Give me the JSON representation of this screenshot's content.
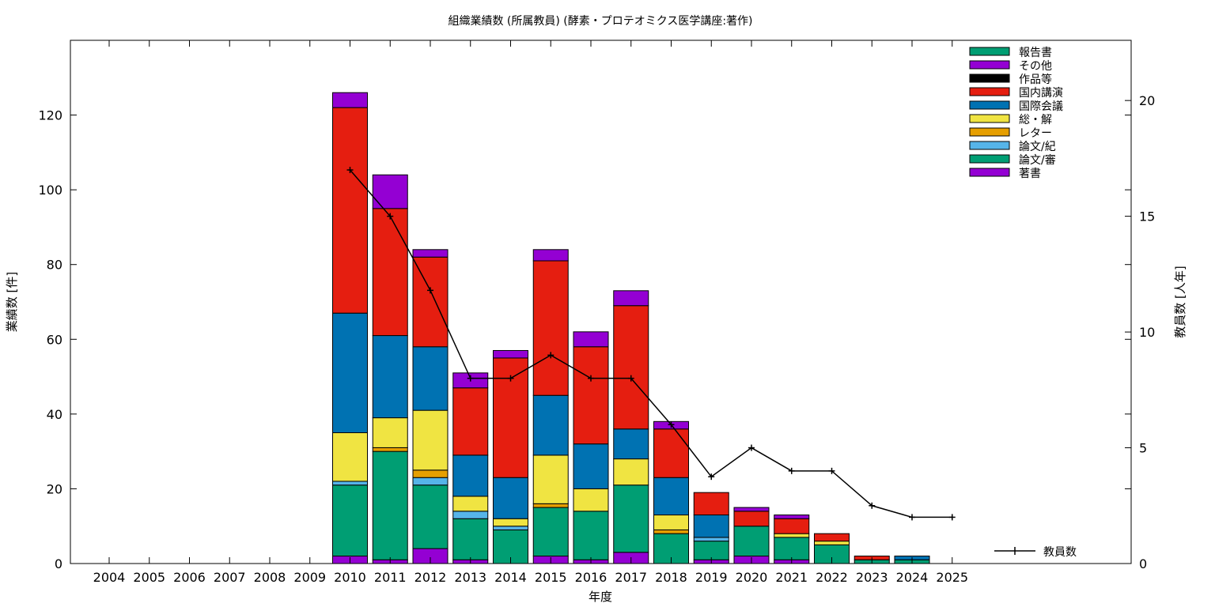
{
  "colors": {
    "報告書": "#009e73",
    "その他": "#9400d3",
    "作品等": "#000000",
    "国内講演": "#e51e10",
    "国際会議": "#0072b2",
    "総・解": "#f0e442",
    "レター": "#e69f00",
    "論文/紀": "#56b4e9",
    "論文/審": "#009e73",
    "著書": "#9400d3",
    "教員数": "#000000"
  },
  "chart_data": {
    "type": "bar",
    "stacked": true,
    "title": "組織業績数 (所属教員) (酵素・プロテオミクス医学講座:著作)",
    "xlabel": "年度",
    "ylabel": "業績数 [件]",
    "y2label": "教員数 [人年]",
    "ylim": [
      0,
      140
    ],
    "y2lim": [
      0,
      22.6
    ],
    "yticks": [
      0,
      20,
      40,
      60,
      80,
      100,
      120
    ],
    "y2ticks": [
      0,
      5,
      10,
      15,
      20
    ],
    "grid": false,
    "legend_position": "top-right",
    "categories": [
      "2004",
      "2005",
      "2006",
      "2007",
      "2008",
      "2009",
      "2010",
      "2011",
      "2012",
      "2013",
      "2014",
      "2015",
      "2016",
      "2017",
      "2018",
      "2019",
      "2020",
      "2021",
      "2022",
      "2023",
      "2024",
      "2025"
    ],
    "series": [
      {
        "name": "著書",
        "values": [
          0,
          0,
          0,
          0,
          0,
          0,
          2,
          1,
          4,
          1,
          0,
          2,
          1,
          3,
          0,
          1,
          2,
          1,
          0,
          0,
          0,
          0
        ]
      },
      {
        "name": "論文/審",
        "values": [
          0,
          0,
          0,
          0,
          0,
          0,
          19,
          29,
          17,
          11,
          9,
          13,
          13,
          18,
          8,
          5,
          8,
          6,
          5,
          1,
          1,
          0
        ]
      },
      {
        "name": "論文/紀",
        "values": [
          0,
          0,
          0,
          0,
          0,
          0,
          1,
          0,
          2,
          2,
          1,
          0,
          0,
          0,
          0,
          1,
          0,
          0,
          0,
          0,
          0,
          0
        ]
      },
      {
        "name": "レター",
        "values": [
          0,
          0,
          0,
          0,
          0,
          0,
          0,
          1,
          2,
          0,
          0,
          1,
          0,
          0,
          1,
          0,
          0,
          0,
          0,
          0,
          0,
          0
        ]
      },
      {
        "name": "総・解",
        "values": [
          0,
          0,
          0,
          0,
          0,
          0,
          13,
          8,
          16,
          4,
          2,
          13,
          6,
          7,
          4,
          0,
          0,
          1,
          1,
          0,
          0,
          0
        ]
      },
      {
        "name": "国際会議",
        "values": [
          0,
          0,
          0,
          0,
          0,
          0,
          32,
          22,
          17,
          11,
          11,
          16,
          12,
          8,
          10,
          6,
          0,
          0,
          0,
          0,
          1,
          0
        ]
      },
      {
        "name": "国内講演",
        "values": [
          0,
          0,
          0,
          0,
          0,
          0,
          55,
          34,
          24,
          18,
          32,
          36,
          26,
          33,
          13,
          6,
          4,
          4,
          2,
          1,
          0,
          0
        ]
      },
      {
        "name": "作品等",
        "values": [
          0,
          0,
          0,
          0,
          0,
          0,
          0,
          0,
          0,
          0,
          0,
          0,
          0,
          0,
          0,
          0,
          0,
          0,
          0,
          0,
          0,
          0
        ]
      },
      {
        "name": "その他",
        "values": [
          0,
          0,
          0,
          0,
          0,
          0,
          4,
          9,
          2,
          4,
          2,
          3,
          4,
          4,
          2,
          0,
          1,
          1,
          0,
          0,
          0,
          0
        ]
      },
      {
        "name": "報告書",
        "values": [
          0,
          0,
          0,
          0,
          0,
          0,
          0,
          0,
          0,
          0,
          0,
          0,
          0,
          0,
          0,
          0,
          0,
          0,
          0,
          0,
          0,
          0
        ]
      }
    ],
    "legend_order": [
      "報告書",
      "その他",
      "作品等",
      "国内講演",
      "国際会議",
      "総・解",
      "レター",
      "論文/紀",
      "論文/審",
      "著書"
    ],
    "line": {
      "name": "教員数",
      "axis": "y2",
      "x": [
        "2010",
        "2011",
        "2012",
        "2013",
        "2014",
        "2015",
        "2016",
        "2017",
        "2018",
        "2019",
        "2020",
        "2021",
        "2022",
        "2023",
        "2024",
        "2025"
      ],
      "values": [
        17,
        15,
        11.8,
        8,
        8,
        9,
        8,
        8,
        6,
        3.75,
        5,
        4,
        4,
        2.5,
        2,
        2
      ]
    }
  }
}
